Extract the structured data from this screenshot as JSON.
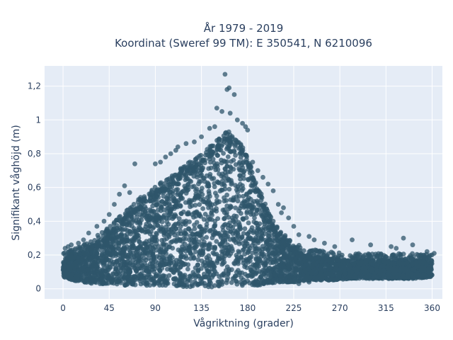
{
  "chart_data": {
    "type": "scatter",
    "title_line1": "År 1979 - 2019",
    "title_line2": "Koordinat (Sweref 99 TM): E 350541, N 6210096",
    "xlabel": "Vågriktning (grader)",
    "ylabel": "Signifikant våghöjd (m)",
    "xlim": [
      -18,
      370
    ],
    "ylim": [
      -0.06,
      1.32
    ],
    "x_ticks": [
      0,
      45,
      90,
      135,
      180,
      225,
      270,
      315,
      360
    ],
    "x_tick_labels": [
      "0",
      "45",
      "90",
      "135",
      "180",
      "225",
      "270",
      "315",
      "360"
    ],
    "y_ticks": [
      0,
      0.2,
      0.4,
      0.6,
      0.8,
      1,
      1.2
    ],
    "y_tick_labels": [
      "0",
      "0,2",
      "0,4",
      "0,6",
      "0,8",
      "1",
      "1,2"
    ],
    "grid": true,
    "marker_color": "#2f566b",
    "marker_opacity": 0.75,
    "background_color": "#e5ecf6",
    "envelope": {
      "x": [
        0,
        10,
        20,
        30,
        45,
        60,
        75,
        90,
        105,
        120,
        135,
        150,
        160,
        170,
        180,
        190,
        200,
        210,
        225,
        240,
        260,
        280,
        300,
        320,
        340,
        360
      ],
      "upper": [
        0.17,
        0.2,
        0.22,
        0.27,
        0.33,
        0.42,
        0.5,
        0.57,
        0.63,
        0.7,
        0.76,
        0.84,
        0.9,
        0.85,
        0.75,
        0.58,
        0.42,
        0.32,
        0.23,
        0.2,
        0.18,
        0.17,
        0.17,
        0.17,
        0.17,
        0.17
      ],
      "lower": [
        0.07,
        0.05,
        0.04,
        0.03,
        0.03,
        0.02,
        0.02,
        0.02,
        0.02,
        0.01,
        0.01,
        0.01,
        0.02,
        0.02,
        0.02,
        0.02,
        0.03,
        0.04,
        0.04,
        0.05,
        0.05,
        0.06,
        0.06,
        0.06,
        0.06,
        0.07
      ]
    },
    "outliers": [
      [
        158,
        1.27
      ],
      [
        162,
        1.19
      ],
      [
        160,
        1.18
      ],
      [
        167,
        1.15
      ],
      [
        150,
        1.07
      ],
      [
        155,
        1.05
      ],
      [
        163,
        1.04
      ],
      [
        170,
        1.0
      ],
      [
        175,
        0.98
      ],
      [
        178,
        0.96
      ],
      [
        148,
        0.96
      ],
      [
        143,
        0.95
      ],
      [
        180,
        0.94
      ],
      [
        135,
        0.9
      ],
      [
        128,
        0.87
      ],
      [
        120,
        0.86
      ],
      [
        112,
        0.84
      ],
      [
        110,
        0.82
      ],
      [
        105,
        0.8
      ],
      [
        100,
        0.78
      ],
      [
        95,
        0.75
      ],
      [
        70,
        0.74
      ],
      [
        90,
        0.74
      ],
      [
        185,
        0.75
      ],
      [
        190,
        0.7
      ],
      [
        195,
        0.66
      ],
      [
        200,
        0.62
      ],
      [
        205,
        0.58
      ],
      [
        60,
        0.61
      ],
      [
        65,
        0.57
      ],
      [
        55,
        0.56
      ],
      [
        50,
        0.5
      ],
      [
        45,
        0.44
      ],
      [
        40,
        0.4
      ],
      [
        33,
        0.37
      ],
      [
        25,
        0.33
      ],
      [
        20,
        0.29
      ],
      [
        15,
        0.27
      ],
      [
        8,
        0.26
      ],
      [
        5,
        0.25
      ],
      [
        2,
        0.24
      ],
      [
        210,
        0.5
      ],
      [
        215,
        0.48
      ],
      [
        213,
        0.45
      ],
      [
        220,
        0.42
      ],
      [
        225,
        0.37
      ],
      [
        230,
        0.32
      ],
      [
        240,
        0.31
      ],
      [
        245,
        0.29
      ],
      [
        255,
        0.27
      ],
      [
        265,
        0.25
      ],
      [
        282,
        0.29
      ],
      [
        300,
        0.26
      ],
      [
        320,
        0.25
      ],
      [
        325,
        0.24
      ],
      [
        332,
        0.3
      ],
      [
        341,
        0.26
      ],
      [
        355,
        0.22
      ],
      [
        362,
        0.21
      ],
      [
        230,
        0.03
      ],
      [
        240,
        0.04
      ]
    ]
  }
}
